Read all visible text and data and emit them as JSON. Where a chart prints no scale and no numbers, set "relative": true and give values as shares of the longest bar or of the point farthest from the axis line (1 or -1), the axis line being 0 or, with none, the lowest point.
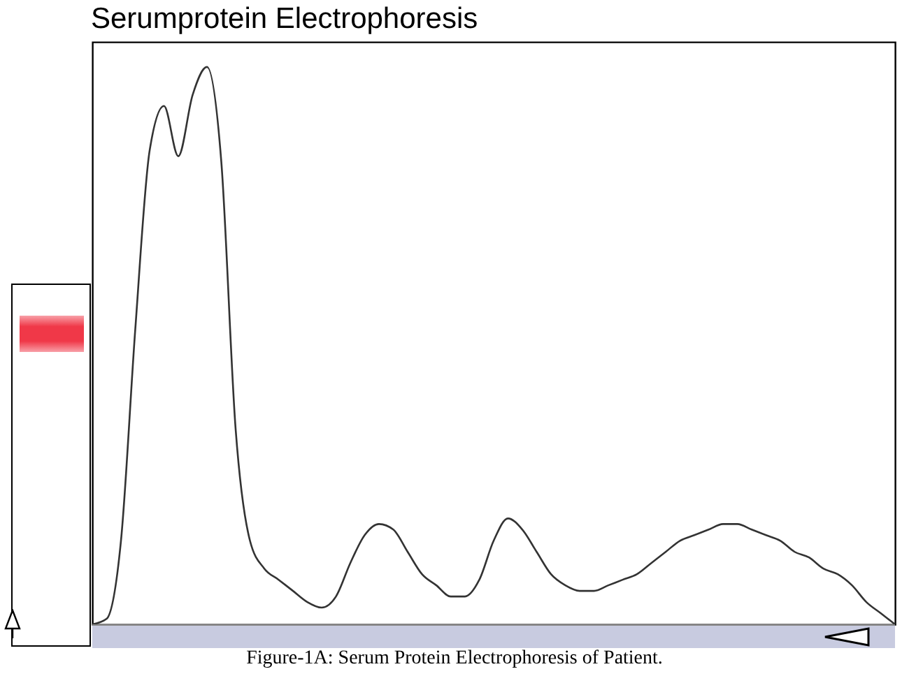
{
  "chart_data": {
    "type": "line",
    "title": "Serumprotein Electrophoresis",
    "relative": true,
    "legend": false,
    "grid": false,
    "marker": "none",
    "line_style": "solid",
    "annotations": [
      "Figure-1A: Serum Protein Electrophoresis of Patient."
    ],
    "categories": [
      null,
      null,
      null,
      null,
      null,
      null,
      null,
      null,
      null,
      null,
      null,
      null,
      null,
      null,
      null,
      null,
      null,
      null,
      null,
      null,
      null,
      null,
      null,
      null,
      null,
      null,
      null,
      null,
      null,
      null,
      null,
      null,
      null,
      null,
      null,
      null,
      null,
      null,
      null,
      null,
      null,
      null,
      null,
      null,
      null,
      null,
      null,
      null,
      null,
      null,
      null,
      null,
      null,
      null,
      null,
      null,
      null
    ],
    "series": [
      {
        "color": "#333333",
        "values": [
          0,
          0.01,
          0.15,
          0.53,
          0.85,
          0.93,
          0.84,
          0.95,
          1,
          0.83,
          0.35,
          0.15,
          0.1,
          0.08,
          0.06,
          0.04,
          0.03,
          0.05,
          0.11,
          0.16,
          0.18,
          0.17,
          0.13,
          0.09,
          0.07,
          0.05,
          0.05,
          0.08,
          0.15,
          0.19,
          0.17,
          0.13,
          0.09,
          0.07,
          0.06,
          0.06,
          0.07,
          0.08,
          0.09,
          0.11,
          0.13,
          0.15,
          0.16,
          0.17,
          0.18,
          0.18,
          0.17,
          0.16,
          0.15,
          0.13,
          0.12,
          0.1,
          0.09,
          0.07,
          0.04,
          0.02,
          0
        ]
      }
    ]
  }
}
